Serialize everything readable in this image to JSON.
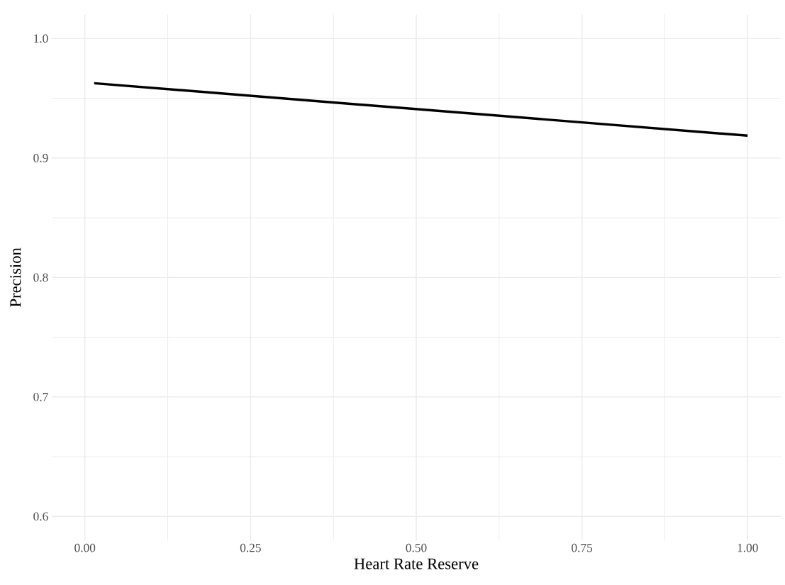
{
  "chart_data": {
    "type": "line",
    "xlabel": "Heart Rate Reserve",
    "ylabel": "Precision",
    "x": [
      0.014,
      1.0
    ],
    "series": [
      {
        "color": "#000000",
        "values": [
          0.9626,
          0.9187
        ]
      }
    ],
    "xlim": [
      -0.05,
      1.05
    ],
    "ylim": [
      0.58,
      1.02
    ],
    "xticks": [
      {
        "value": 0,
        "label": "0.00"
      },
      {
        "value": 0.25,
        "label": "0.25"
      },
      {
        "value": 0.5,
        "label": "0.50"
      },
      {
        "value": 0.75,
        "label": "0.75"
      },
      {
        "value": 1,
        "label": "1.00"
      }
    ],
    "yticks": [
      {
        "value": 0.6,
        "label": "0.6"
      },
      {
        "value": 0.7,
        "label": "0.7"
      },
      {
        "value": 0.8,
        "label": "0.8"
      },
      {
        "value": 0.9,
        "label": "0.9"
      },
      {
        "value": 1.0,
        "label": "1.0"
      }
    ],
    "grid": true
  }
}
